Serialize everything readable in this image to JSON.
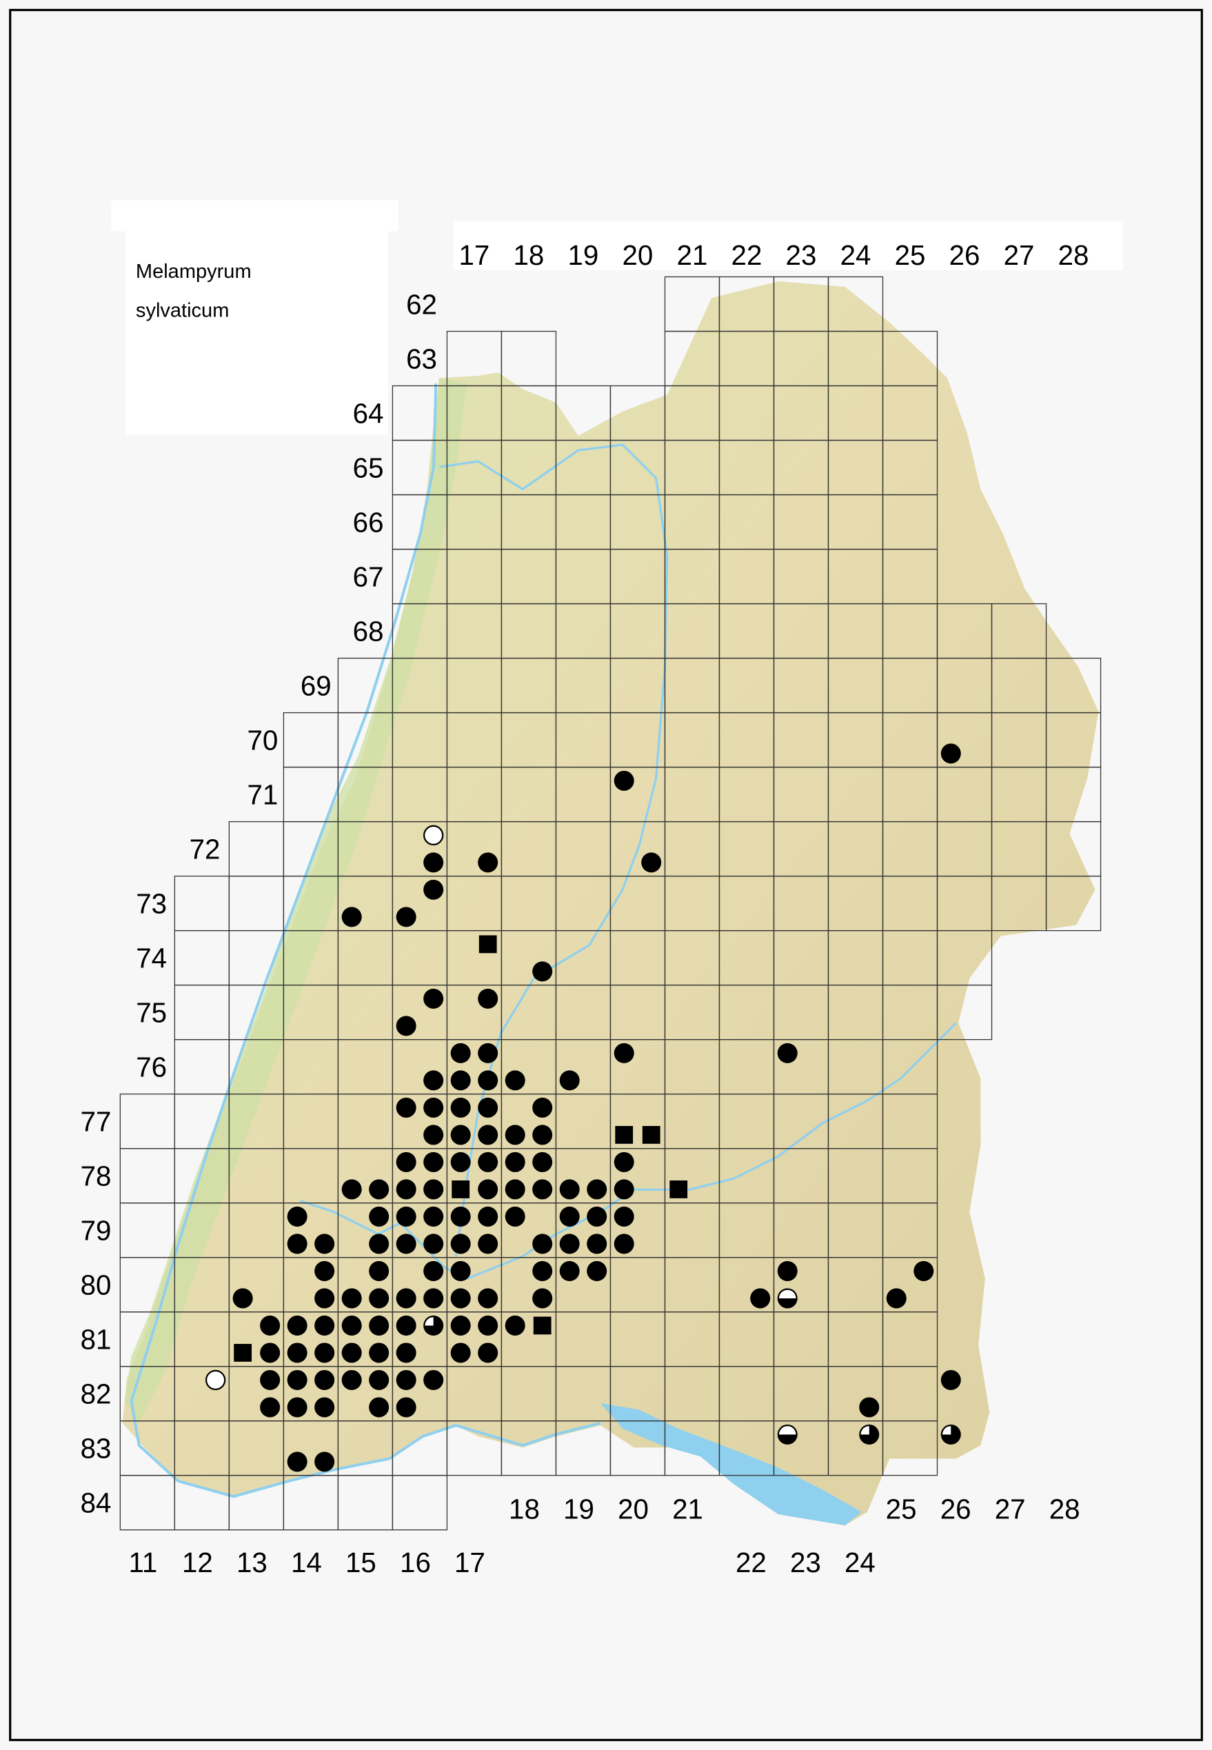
{
  "legend": {
    "species_line1": "Melampyrum",
    "species_line2": "sylvaticum"
  },
  "grid_labels": {
    "top_columns": [
      "17",
      "18",
      "19",
      "20",
      "21",
      "22",
      "23",
      "24",
      "25",
      "26",
      "27",
      "28"
    ],
    "left_rows": [
      "62",
      "63",
      "64",
      "65",
      "66",
      "67",
      "68",
      "69",
      "70",
      "71",
      "72",
      "73",
      "74",
      "75",
      "76",
      "77",
      "78",
      "79",
      "80",
      "81",
      "82",
      "83",
      "84"
    ],
    "bottom_columns_low": [
      "11",
      "12",
      "13",
      "14",
      "15",
      "16",
      "17"
    ],
    "bottom_columns_mid": [
      "18",
      "19",
      "20",
      "21"
    ],
    "bottom_columns_lake": [
      "22",
      "23",
      "24"
    ],
    "bottom_columns_right": [
      "25",
      "26",
      "27",
      "28"
    ]
  },
  "colors": {
    "background": "#f7f7f7",
    "land": "#e4d9ae",
    "lowland": "#cfe0a6",
    "water": "#8fd0ee",
    "grid": "#333333",
    "symbol": "#000000"
  },
  "records": {
    "filled_circle": [
      [
        26.25,
        70.75
      ],
      [
        20.25,
        71.25
      ],
      [
        16.75,
        72.75
      ],
      [
        17.75,
        72.75
      ],
      [
        20.75,
        72.75
      ],
      [
        16.75,
        73.25
      ],
      [
        15.25,
        73.75
      ],
      [
        16.25,
        73.75
      ],
      [
        18.75,
        74.75
      ],
      [
        16.75,
        75.25
      ],
      [
        17.75,
        75.25
      ],
      [
        16.25,
        75.75
      ],
      [
        17.25,
        76.25
      ],
      [
        17.75,
        76.25
      ],
      [
        20.25,
        76.25
      ],
      [
        23.25,
        76.25
      ],
      [
        16.75,
        76.75
      ],
      [
        17.25,
        76.75
      ],
      [
        17.75,
        76.75
      ],
      [
        18.25,
        76.75
      ],
      [
        19.25,
        76.75
      ],
      [
        16.25,
        77.25
      ],
      [
        16.75,
        77.25
      ],
      [
        17.25,
        77.25
      ],
      [
        17.75,
        77.25
      ],
      [
        18.75,
        77.25
      ],
      [
        16.75,
        77.75
      ],
      [
        17.25,
        77.75
      ],
      [
        17.75,
        77.75
      ],
      [
        18.25,
        77.75
      ],
      [
        18.75,
        77.75
      ],
      [
        16.25,
        78.25
      ],
      [
        16.75,
        78.25
      ],
      [
        17.25,
        78.25
      ],
      [
        17.75,
        78.25
      ],
      [
        18.25,
        78.25
      ],
      [
        18.75,
        78.25
      ],
      [
        20.25,
        78.25
      ],
      [
        15.25,
        78.75
      ],
      [
        15.75,
        78.75
      ],
      [
        16.25,
        78.75
      ],
      [
        16.75,
        78.75
      ],
      [
        17.75,
        78.75
      ],
      [
        18.25,
        78.75
      ],
      [
        18.75,
        78.75
      ],
      [
        19.25,
        78.75
      ],
      [
        19.75,
        78.75
      ],
      [
        20.25,
        78.75
      ],
      [
        14.25,
        79.25
      ],
      [
        15.75,
        79.25
      ],
      [
        16.25,
        79.25
      ],
      [
        16.75,
        79.25
      ],
      [
        17.25,
        79.25
      ],
      [
        17.75,
        79.25
      ],
      [
        18.25,
        79.25
      ],
      [
        19.25,
        79.25
      ],
      [
        19.75,
        79.25
      ],
      [
        20.25,
        79.25
      ],
      [
        14.25,
        79.75
      ],
      [
        14.75,
        79.75
      ],
      [
        15.75,
        79.75
      ],
      [
        16.25,
        79.75
      ],
      [
        16.75,
        79.75
      ],
      [
        17.25,
        79.75
      ],
      [
        17.75,
        79.75
      ],
      [
        18.75,
        79.75
      ],
      [
        19.25,
        79.75
      ],
      [
        19.75,
        79.75
      ],
      [
        20.25,
        79.75
      ],
      [
        14.75,
        80.25
      ],
      [
        15.75,
        80.25
      ],
      [
        16.75,
        80.25
      ],
      [
        17.25,
        80.25
      ],
      [
        18.75,
        80.25
      ],
      [
        19.25,
        80.25
      ],
      [
        19.75,
        80.25
      ],
      [
        23.25,
        80.25
      ],
      [
        25.75,
        80.25
      ],
      [
        13.25,
        80.75
      ],
      [
        14.75,
        80.75
      ],
      [
        15.25,
        80.75
      ],
      [
        15.75,
        80.75
      ],
      [
        16.25,
        80.75
      ],
      [
        16.75,
        80.75
      ],
      [
        17.25,
        80.75
      ],
      [
        17.75,
        80.75
      ],
      [
        18.75,
        80.75
      ],
      [
        22.75,
        80.75
      ],
      [
        25.25,
        80.75
      ],
      [
        13.75,
        81.25
      ],
      [
        14.25,
        81.25
      ],
      [
        14.75,
        81.25
      ],
      [
        15.25,
        81.25
      ],
      [
        15.75,
        81.25
      ],
      [
        16.25,
        81.25
      ],
      [
        17.25,
        81.25
      ],
      [
        17.75,
        81.25
      ],
      [
        18.25,
        81.25
      ],
      [
        13.75,
        81.75
      ],
      [
        14.25,
        81.75
      ],
      [
        14.75,
        81.75
      ],
      [
        15.25,
        81.75
      ],
      [
        15.75,
        81.75
      ],
      [
        16.25,
        81.75
      ],
      [
        17.25,
        81.75
      ],
      [
        17.75,
        81.75
      ],
      [
        13.75,
        82.25
      ],
      [
        14.25,
        82.25
      ],
      [
        14.75,
        82.25
      ],
      [
        15.25,
        82.25
      ],
      [
        15.75,
        82.25
      ],
      [
        16.25,
        82.25
      ],
      [
        16.75,
        82.25
      ],
      [
        26.25,
        82.25
      ],
      [
        13.75,
        82.75
      ],
      [
        14.25,
        82.75
      ],
      [
        14.75,
        82.75
      ],
      [
        15.75,
        82.75
      ],
      [
        16.25,
        82.75
      ],
      [
        24.75,
        82.75
      ],
      [
        14.25,
        83.75
      ],
      [
        14.75,
        83.75
      ]
    ],
    "filled_square": [
      [
        17.75,
        74.25
      ],
      [
        20.25,
        77.75
      ],
      [
        20.75,
        77.75
      ],
      [
        17.25,
        78.75
      ],
      [
        21.25,
        78.75
      ],
      [
        18.75,
        81.25
      ],
      [
        13.25,
        81.75
      ]
    ],
    "open_circle": [
      [
        16.75,
        72.25
      ],
      [
        12.75,
        82.25
      ]
    ],
    "half_circle": [
      [
        23.25,
        80.75
      ],
      [
        23.25,
        83.25
      ]
    ],
    "three_quarter_circle": [
      [
        16.75,
        81.25
      ],
      [
        24.75,
        83.25
      ],
      [
        26.25,
        83.25
      ]
    ]
  }
}
